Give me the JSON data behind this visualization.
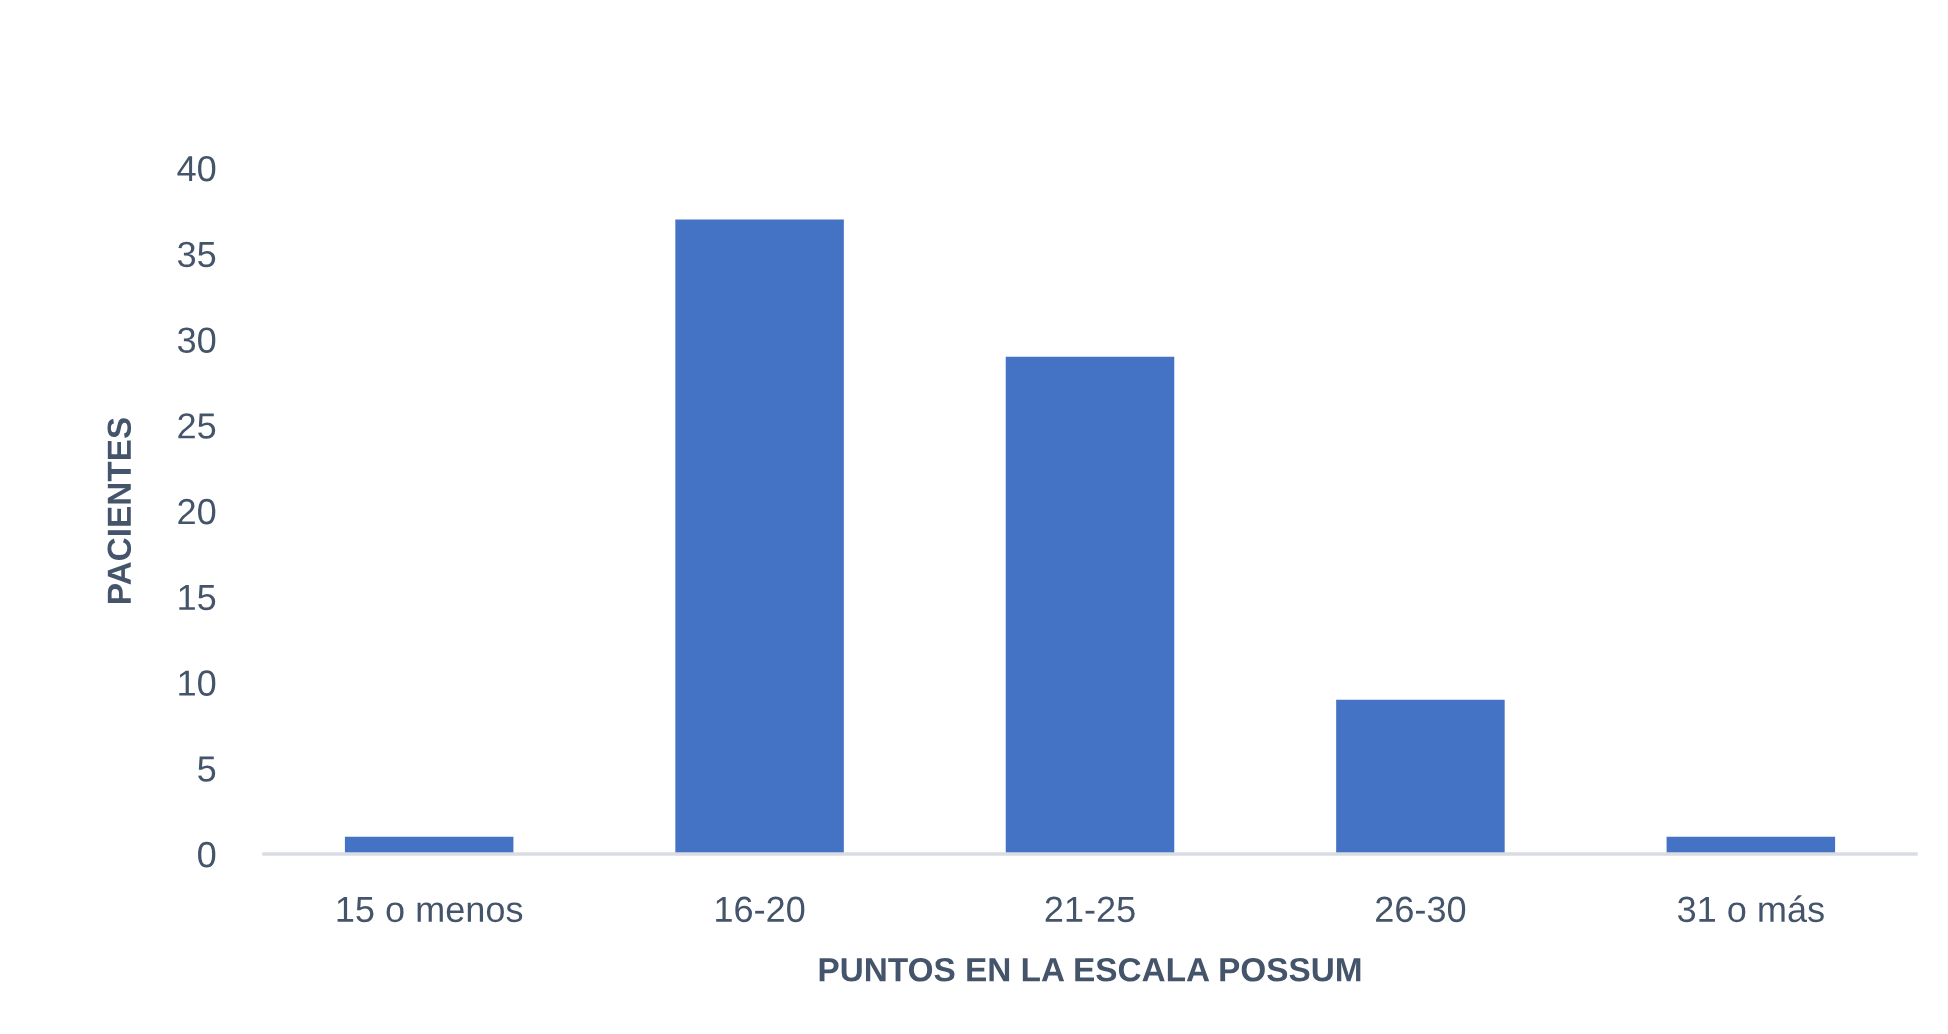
{
  "chart_data": {
    "type": "bar",
    "xlabel": "PUNTOS EN LA ESCALA POSSUM",
    "ylabel": "PACIENTES",
    "categories": [
      "15 o menos",
      "16-20",
      "21-25",
      "26-30",
      "31 o más"
    ],
    "values": [
      1,
      37,
      29,
      9,
      1
    ],
    "color": "#4472c4",
    "ylim": [
      0,
      40
    ],
    "yticks": [
      0,
      5,
      10,
      15,
      20,
      25,
      30,
      35,
      40
    ]
  }
}
